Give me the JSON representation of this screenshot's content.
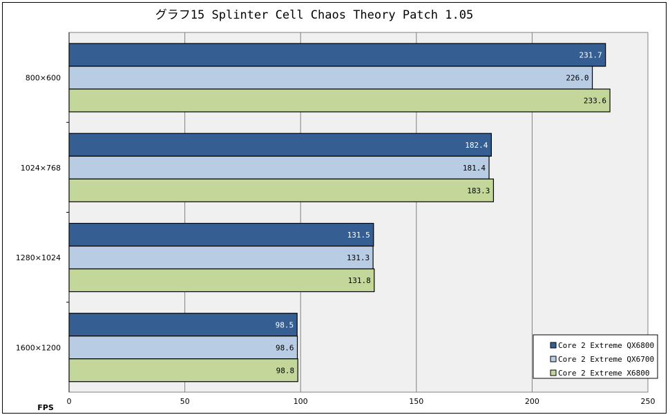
{
  "chart_data": {
    "type": "bar",
    "orientation": "horizontal",
    "title": "グラフ15  Splinter Cell Chaos Theory Patch 1.05",
    "xlabel": "FPS",
    "xlim": [
      0,
      250
    ],
    "xticks": [
      0,
      50,
      100,
      150,
      200,
      250
    ],
    "categories": [
      "800×600",
      "1024×768",
      "1280×1024",
      "1600×1200"
    ],
    "series": [
      {
        "name": "Core 2 Extreme QX6800",
        "color": "#355f92",
        "label_color": "#ffffff",
        "values": [
          231.7,
          182.4,
          131.5,
          98.5
        ]
      },
      {
        "name": "Core 2 Extreme QX6700",
        "color": "#b8cce4",
        "label_color": "#000000",
        "values": [
          226.0,
          181.4,
          131.3,
          98.6
        ]
      },
      {
        "name": "Core 2 Extreme X6800",
        "color": "#c4d79b",
        "label_color": "#000000",
        "values": [
          233.6,
          183.3,
          131.8,
          98.8
        ]
      }
    ],
    "grid": "vertical",
    "plot_background": "#f0f0f0",
    "legend_position": "bottom-right"
  }
}
